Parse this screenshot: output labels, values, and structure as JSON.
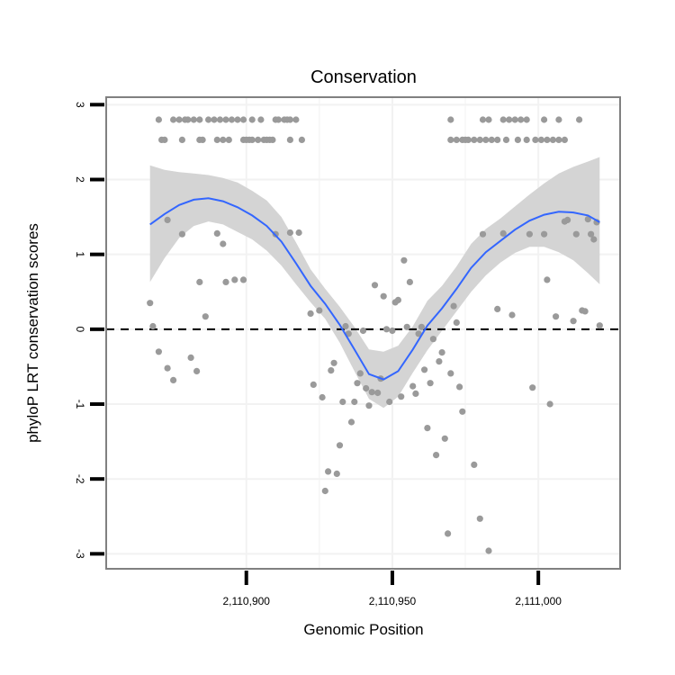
{
  "chart_data": {
    "type": "scatter",
    "title": "Conservation",
    "xlabel": "Genomic Position",
    "ylabel": "phyloP LRT conservation scores",
    "xlim": [
      2110852,
      2111028
    ],
    "ylim": [
      -3.2,
      3.1
    ],
    "x_ticks": [
      2110900,
      2110950,
      2111000
    ],
    "x_tick_labels": [
      "2,110,900",
      "2,110,950",
      "2,111,000"
    ],
    "y_ticks": [
      -3,
      -2,
      -1,
      0,
      1,
      2,
      3
    ],
    "y_tick_labels": [
      "-3",
      "-2",
      "-1",
      "0",
      "1",
      "2",
      "3"
    ],
    "grid": true,
    "reference_line": {
      "y": 0,
      "style": "dashed"
    },
    "colors": {
      "points": "#9a9a9a",
      "smooth_line": "#3366ff",
      "confidence_band": "#d4d4d4",
      "grid": "#f2f2f2",
      "panel_border": "#808080"
    },
    "series": [
      {
        "type": "points",
        "points": [
          {
            "x": 2110870,
            "y": 2.8
          },
          {
            "x": 2110875,
            "y": 2.8
          },
          {
            "x": 2110877,
            "y": 2.8
          },
          {
            "x": 2110879,
            "y": 2.8
          },
          {
            "x": 2110880,
            "y": 2.8
          },
          {
            "x": 2110882,
            "y": 2.8
          },
          {
            "x": 2110884,
            "y": 2.8
          },
          {
            "x": 2110887,
            "y": 2.8
          },
          {
            "x": 2110889,
            "y": 2.8
          },
          {
            "x": 2110891,
            "y": 2.8
          },
          {
            "x": 2110893,
            "y": 2.8
          },
          {
            "x": 2110895,
            "y": 2.8
          },
          {
            "x": 2110897,
            "y": 2.8
          },
          {
            "x": 2110899,
            "y": 2.8
          },
          {
            "x": 2110902,
            "y": 2.8
          },
          {
            "x": 2110905,
            "y": 2.8
          },
          {
            "x": 2110910,
            "y": 2.8
          },
          {
            "x": 2110911,
            "y": 2.8
          },
          {
            "x": 2110913,
            "y": 2.8
          },
          {
            "x": 2110914,
            "y": 2.8
          },
          {
            "x": 2110915,
            "y": 2.8
          },
          {
            "x": 2110917,
            "y": 2.8
          },
          {
            "x": 2110871,
            "y": 2.53
          },
          {
            "x": 2110872,
            "y": 2.53
          },
          {
            "x": 2110878,
            "y": 2.53
          },
          {
            "x": 2110884,
            "y": 2.53
          },
          {
            "x": 2110885,
            "y": 2.53
          },
          {
            "x": 2110890,
            "y": 2.53
          },
          {
            "x": 2110892,
            "y": 2.53
          },
          {
            "x": 2110894,
            "y": 2.53
          },
          {
            "x": 2110899,
            "y": 2.53
          },
          {
            "x": 2110900,
            "y": 2.53
          },
          {
            "x": 2110901,
            "y": 2.53
          },
          {
            "x": 2110902,
            "y": 2.53
          },
          {
            "x": 2110904,
            "y": 2.53
          },
          {
            "x": 2110906,
            "y": 2.53
          },
          {
            "x": 2110907,
            "y": 2.53
          },
          {
            "x": 2110908,
            "y": 2.53
          },
          {
            "x": 2110909,
            "y": 2.53
          },
          {
            "x": 2110915,
            "y": 2.53
          },
          {
            "x": 2110919,
            "y": 2.53
          },
          {
            "x": 2110970,
            "y": 2.8
          },
          {
            "x": 2110981,
            "y": 2.8
          },
          {
            "x": 2110983,
            "y": 2.8
          },
          {
            "x": 2110988,
            "y": 2.8
          },
          {
            "x": 2110990,
            "y": 2.8
          },
          {
            "x": 2110992,
            "y": 2.8
          },
          {
            "x": 2110994,
            "y": 2.8
          },
          {
            "x": 2110996,
            "y": 2.8
          },
          {
            "x": 2111002,
            "y": 2.8
          },
          {
            "x": 2111007,
            "y": 2.8
          },
          {
            "x": 2111014,
            "y": 2.8
          },
          {
            "x": 2110970,
            "y": 2.53
          },
          {
            "x": 2110972,
            "y": 2.53
          },
          {
            "x": 2110974,
            "y": 2.53
          },
          {
            "x": 2110975,
            "y": 2.53
          },
          {
            "x": 2110976,
            "y": 2.53
          },
          {
            "x": 2110978,
            "y": 2.53
          },
          {
            "x": 2110980,
            "y": 2.53
          },
          {
            "x": 2110982,
            "y": 2.53
          },
          {
            "x": 2110984,
            "y": 2.53
          },
          {
            "x": 2110986,
            "y": 2.53
          },
          {
            "x": 2110989,
            "y": 2.53
          },
          {
            "x": 2110993,
            "y": 2.53
          },
          {
            "x": 2110996,
            "y": 2.53
          },
          {
            "x": 2110999,
            "y": 2.53
          },
          {
            "x": 2111001,
            "y": 2.53
          },
          {
            "x": 2111003,
            "y": 2.53
          },
          {
            "x": 2111005,
            "y": 2.53
          },
          {
            "x": 2111007,
            "y": 2.53
          },
          {
            "x": 2111009,
            "y": 2.53
          },
          {
            "x": 2110867,
            "y": 0.35
          },
          {
            "x": 2110868,
            "y": 0.04
          },
          {
            "x": 2110870,
            "y": -0.3
          },
          {
            "x": 2110873,
            "y": -0.52
          },
          {
            "x": 2110873,
            "y": 1.46
          },
          {
            "x": 2110875,
            "y": -0.68
          },
          {
            "x": 2110878,
            "y": 1.27
          },
          {
            "x": 2110881,
            "y": -0.38
          },
          {
            "x": 2110883,
            "y": -0.56
          },
          {
            "x": 2110884,
            "y": 0.63
          },
          {
            "x": 2110886,
            "y": 0.17
          },
          {
            "x": 2110890,
            "y": 1.28
          },
          {
            "x": 2110892,
            "y": 1.14
          },
          {
            "x": 2110893,
            "y": 0.63
          },
          {
            "x": 2110896,
            "y": 0.66
          },
          {
            "x": 2110899,
            "y": 0.66
          },
          {
            "x": 2110910,
            "y": 1.27
          },
          {
            "x": 2110915,
            "y": 1.29
          },
          {
            "x": 2110918,
            "y": 1.29
          },
          {
            "x": 2110922,
            "y": 0.21
          },
          {
            "x": 2110923,
            "y": -0.74
          },
          {
            "x": 2110925,
            "y": 0.25
          },
          {
            "x": 2110926,
            "y": -0.91
          },
          {
            "x": 2110927,
            "y": -2.16
          },
          {
            "x": 2110928,
            "y": -1.9
          },
          {
            "x": 2110929,
            "y": -0.55
          },
          {
            "x": 2110930,
            "y": -0.45
          },
          {
            "x": 2110931,
            "y": -1.93
          },
          {
            "x": 2110932,
            "y": -1.55
          },
          {
            "x": 2110933,
            "y": -0.97
          },
          {
            "x": 2110934,
            "y": 0.04
          },
          {
            "x": 2110935,
            "y": -0.06
          },
          {
            "x": 2110936,
            "y": -1.24
          },
          {
            "x": 2110937,
            "y": -0.97
          },
          {
            "x": 2110938,
            "y": -0.72
          },
          {
            "x": 2110939,
            "y": -0.59
          },
          {
            "x": 2110940,
            "y": -0.02
          },
          {
            "x": 2110941,
            "y": -0.79
          },
          {
            "x": 2110942,
            "y": -1.02
          },
          {
            "x": 2110943,
            "y": -0.84
          },
          {
            "x": 2110944,
            "y": 0.59
          },
          {
            "x": 2110945,
            "y": -0.85
          },
          {
            "x": 2110946,
            "y": -0.66
          },
          {
            "x": 2110947,
            "y": 0.44
          },
          {
            "x": 2110948,
            "y": 0.0
          },
          {
            "x": 2110949,
            "y": -0.97
          },
          {
            "x": 2110950,
            "y": -0.02
          },
          {
            "x": 2110951,
            "y": 0.36
          },
          {
            "x": 2110952,
            "y": 0.39
          },
          {
            "x": 2110953,
            "y": -0.9
          },
          {
            "x": 2110954,
            "y": 0.92
          },
          {
            "x": 2110955,
            "y": 0.03
          },
          {
            "x": 2110956,
            "y": 0.63
          },
          {
            "x": 2110957,
            "y": -0.76
          },
          {
            "x": 2110958,
            "y": -0.86
          },
          {
            "x": 2110959,
            "y": -0.06
          },
          {
            "x": 2110960,
            "y": 0.03
          },
          {
            "x": 2110961,
            "y": -0.54
          },
          {
            "x": 2110962,
            "y": -1.32
          },
          {
            "x": 2110963,
            "y": -0.72
          },
          {
            "x": 2110964,
            "y": -0.13
          },
          {
            "x": 2110965,
            "y": -1.68
          },
          {
            "x": 2110966,
            "y": -0.43
          },
          {
            "x": 2110967,
            "y": -0.31
          },
          {
            "x": 2110968,
            "y": -1.46
          },
          {
            "x": 2110969,
            "y": -2.73
          },
          {
            "x": 2110970,
            "y": -0.59
          },
          {
            "x": 2110971,
            "y": 0.31
          },
          {
            "x": 2110972,
            "y": 0.09
          },
          {
            "x": 2110973,
            "y": -0.77
          },
          {
            "x": 2110974,
            "y": -1.1
          },
          {
            "x": 2110978,
            "y": -1.81
          },
          {
            "x": 2110980,
            "y": -2.53
          },
          {
            "x": 2110981,
            "y": 1.27
          },
          {
            "x": 2110983,
            "y": -2.96
          },
          {
            "x": 2110986,
            "y": 0.27
          },
          {
            "x": 2110988,
            "y": 1.28
          },
          {
            "x": 2110991,
            "y": 0.19
          },
          {
            "x": 2110997,
            "y": 1.27
          },
          {
            "x": 2110998,
            "y": -0.78
          },
          {
            "x": 2111002,
            "y": 1.27
          },
          {
            "x": 2111003,
            "y": 0.66
          },
          {
            "x": 2111004,
            "y": -1.0
          },
          {
            "x": 2111006,
            "y": 0.17
          },
          {
            "x": 2111009,
            "y": 1.44
          },
          {
            "x": 2111010,
            "y": 1.46
          },
          {
            "x": 2111012,
            "y": 0.11
          },
          {
            "x": 2111013,
            "y": 1.27
          },
          {
            "x": 2111015,
            "y": 0.25
          },
          {
            "x": 2111016,
            "y": 0.24
          },
          {
            "x": 2111017,
            "y": 1.47
          },
          {
            "x": 2111018,
            "y": 1.27
          },
          {
            "x": 2111019,
            "y": 1.2
          },
          {
            "x": 2111020,
            "y": 1.43
          },
          {
            "x": 2111021,
            "y": 0.05
          }
        ]
      },
      {
        "type": "smooth",
        "x": [
          2110867,
          2110872,
          2110877,
          2110882,
          2110887,
          2110892,
          2110897,
          2110902,
          2110907,
          2110912,
          2110917,
          2110922,
          2110927,
          2110932,
          2110937,
          2110942,
          2110947,
          2110952,
          2110957,
          2110962,
          2110967,
          2110972,
          2110977,
          2110982,
          2110987,
          2110992,
          2110997,
          2111002,
          2111007,
          2111012,
          2111017,
          2111021
        ],
        "y": [
          1.4,
          1.54,
          1.66,
          1.73,
          1.75,
          1.71,
          1.63,
          1.52,
          1.38,
          1.17,
          0.88,
          0.58,
          0.34,
          0.06,
          -0.27,
          -0.6,
          -0.67,
          -0.56,
          -0.27,
          0.05,
          0.28,
          0.54,
          0.82,
          1.03,
          1.18,
          1.33,
          1.45,
          1.53,
          1.57,
          1.56,
          1.52,
          1.43
        ],
        "lower": [
          0.63,
          0.95,
          1.22,
          1.38,
          1.44,
          1.4,
          1.3,
          1.2,
          1.05,
          0.85,
          0.6,
          0.36,
          0.14,
          -0.18,
          -0.56,
          -0.93,
          -1.05,
          -0.9,
          -0.58,
          -0.28,
          -0.02,
          0.24,
          0.5,
          0.72,
          0.89,
          1.02,
          1.1,
          1.1,
          1.03,
          0.92,
          0.75,
          0.6
        ],
        "upper": [
          2.19,
          2.13,
          2.1,
          2.08,
          2.06,
          2.02,
          1.96,
          1.85,
          1.72,
          1.5,
          1.16,
          0.8,
          0.54,
          0.3,
          0.03,
          -0.27,
          -0.3,
          -0.22,
          0.04,
          0.38,
          0.58,
          0.84,
          1.14,
          1.34,
          1.48,
          1.64,
          1.8,
          1.95,
          2.08,
          2.17,
          2.24,
          2.3
        ]
      }
    ]
  }
}
